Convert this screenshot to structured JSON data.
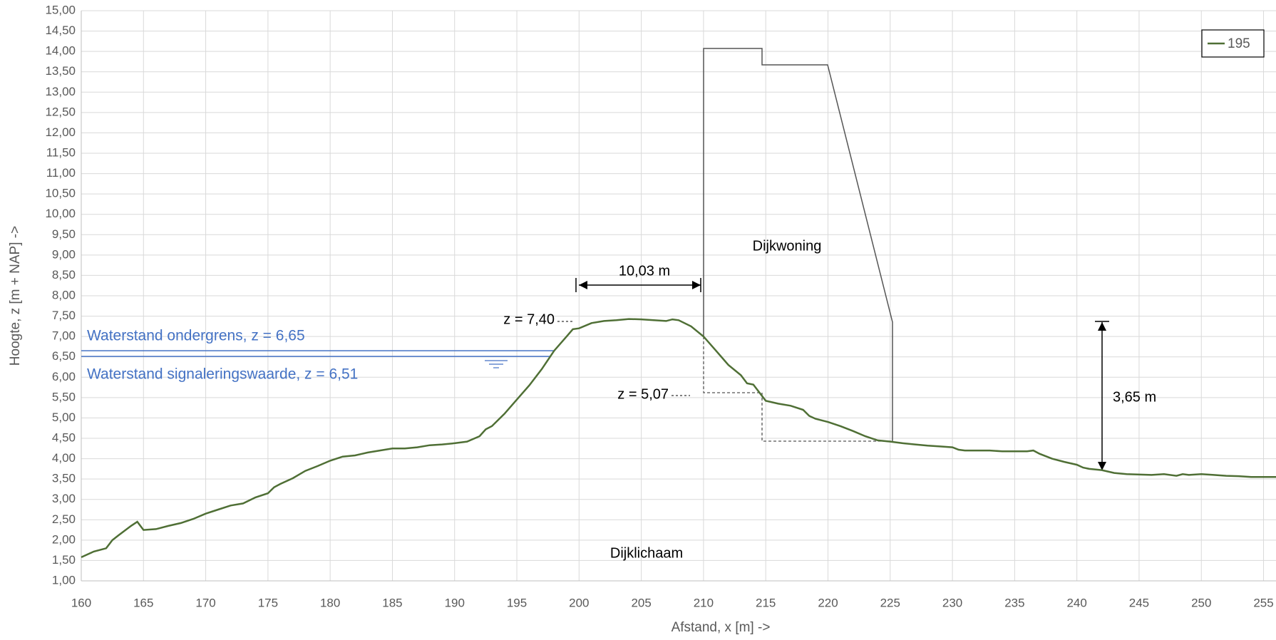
{
  "chart_data": {
    "type": "line",
    "x_label": "Afstand, x [m] ->",
    "y_label": "Hoogte, z [m + NAP] ->",
    "xlim": [
      160,
      256
    ],
    "xticks": [
      160,
      165,
      170,
      175,
      180,
      185,
      190,
      195,
      200,
      205,
      210,
      215,
      220,
      225,
      230,
      235,
      240,
      245,
      250,
      255
    ],
    "ylim": [
      1,
      15
    ],
    "yticks": [
      {
        "value": 1,
        "label": "1,00"
      },
      {
        "value": 1.5,
        "label": "1,50"
      },
      {
        "value": 2,
        "label": "2,00"
      },
      {
        "value": 2.5,
        "label": "2,50"
      },
      {
        "value": 3,
        "label": "3,00"
      },
      {
        "value": 3.5,
        "label": "3,50"
      },
      {
        "value": 4,
        "label": "4,00"
      },
      {
        "value": 4.5,
        "label": "4,50"
      },
      {
        "value": 5,
        "label": "5,00"
      },
      {
        "value": 5.5,
        "label": "5,50"
      },
      {
        "value": 6,
        "label": "6,00"
      },
      {
        "value": 6.5,
        "label": "6,50"
      },
      {
        "value": 7,
        "label": "7,00"
      },
      {
        "value": 7.5,
        "label": "7,50"
      },
      {
        "value": 8,
        "label": "8,00"
      },
      {
        "value": 8.5,
        "label": "8,50"
      },
      {
        "value": 9,
        "label": "9,00"
      },
      {
        "value": 9.5,
        "label": "9,50"
      },
      {
        "value": 10,
        "label": "10,00"
      },
      {
        "value": 10.5,
        "label": "10,50"
      },
      {
        "value": 11,
        "label": "11,00"
      },
      {
        "value": 11.5,
        "label": "11,50"
      },
      {
        "value": 12,
        "label": "12,00"
      },
      {
        "value": 12.5,
        "label": "12,50"
      },
      {
        "value": 13,
        "label": "13,00"
      },
      {
        "value": 13.5,
        "label": "13,50"
      },
      {
        "value": 14,
        "label": "14,00"
      },
      {
        "value": 14.5,
        "label": "14,50"
      },
      {
        "value": 15,
        "label": "15,00"
      }
    ],
    "grid": true,
    "legend": "upper right",
    "x": [
      160,
      161,
      162,
      162.5,
      163,
      164,
      164.5,
      165,
      166,
      167,
      168,
      169,
      170,
      171,
      172,
      173,
      174,
      175,
      175.5,
      176,
      177,
      178,
      179,
      180,
      181,
      182,
      183,
      184,
      185,
      186,
      187,
      188,
      189,
      190,
      191,
      192,
      192.5,
      193,
      194,
      195,
      196,
      197,
      198,
      199,
      199.5,
      200,
      201,
      202,
      203,
      204,
      205,
      206,
      207,
      207.5,
      208,
      209,
      210,
      211,
      212,
      213,
      213.5,
      214,
      215,
      216,
      217,
      218,
      218.5,
      219,
      220,
      221,
      222,
      223,
      224,
      225,
      226,
      227,
      228,
      229,
      230,
      230.5,
      231,
      233,
      234,
      236,
      236.5,
      237,
      238,
      239,
      240,
      240.5,
      241,
      242,
      243,
      244,
      246,
      247,
      248,
      248.5,
      249,
      250,
      251,
      252,
      253,
      254,
      256
    ],
    "series": [
      {
        "name": "195",
        "color": "#4f6f35",
        "values": [
          1.58,
          1.72,
          1.8,
          2.0,
          2.12,
          2.35,
          2.45,
          2.25,
          2.27,
          2.35,
          2.42,
          2.52,
          2.65,
          2.75,
          2.85,
          2.9,
          3.05,
          3.15,
          3.3,
          3.38,
          3.52,
          3.7,
          3.82,
          3.95,
          4.05,
          4.08,
          4.15,
          4.2,
          4.25,
          4.25,
          4.28,
          4.33,
          4.35,
          4.38,
          4.42,
          4.55,
          4.72,
          4.8,
          5.1,
          5.45,
          5.8,
          6.2,
          6.65,
          7.0,
          7.18,
          7.2,
          7.33,
          7.38,
          7.4,
          7.43,
          7.42,
          7.4,
          7.38,
          7.42,
          7.4,
          7.25,
          7.0,
          6.65,
          6.3,
          6.05,
          5.85,
          5.82,
          5.42,
          5.35,
          5.3,
          5.2,
          5.05,
          4.98,
          4.9,
          4.8,
          4.68,
          4.55,
          4.45,
          4.42,
          4.38,
          4.35,
          4.32,
          4.3,
          4.28,
          4.22,
          4.2,
          4.2,
          4.18,
          4.18,
          4.2,
          4.12,
          4.0,
          3.92,
          3.85,
          3.78,
          3.75,
          3.72,
          3.65,
          3.62,
          3.6,
          3.62,
          3.58,
          3.62,
          3.6,
          3.62,
          3.6,
          3.58,
          3.57,
          3.55,
          3.55
        ]
      }
    ],
    "reference_lines": [
      {
        "label": "Waterstand ondergrens, z = 6,65",
        "value": 6.65,
        "color": "#4472c4"
      },
      {
        "label": "Waterstand signaleringswaarde, z = 6,51",
        "value": 6.51,
        "color": "#4472c4"
      }
    ],
    "annotations": [
      "10,03 m",
      "z = 7,40",
      "z = 5,07",
      "3,65 m",
      "Dijkwoning",
      "Dijklichaam"
    ]
  }
}
